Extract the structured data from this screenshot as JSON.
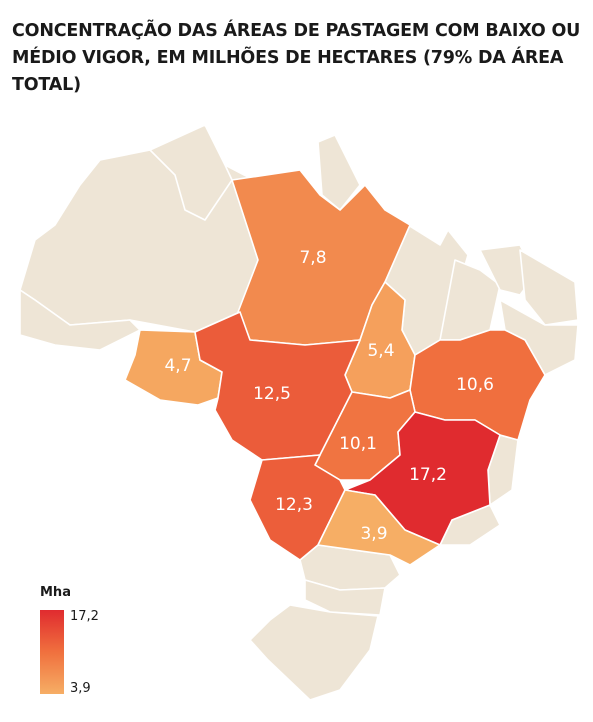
{
  "title": "CONCENTRAÇÃO DAS ÁREAS DE PASTAGEM COM BAIXO OU MÉDIO VIGOR, EM MILHÕES DE HECTARES (79% DA ÁREA TOTAL)",
  "legend": {
    "title": "Mha",
    "max": "17,2",
    "min": "3,9"
  },
  "colors": {
    "background_state": "#eee5d6",
    "scale_high": "#e02b2f",
    "scale_mid": "#f0703e",
    "scale_low": "#f6ae65"
  },
  "chart_data": {
    "type": "choropleth",
    "unit": "Mha",
    "scale_range": [
      3.9,
      17.2
    ],
    "regions": [
      {
        "value": 7.8,
        "label": "7,8"
      },
      {
        "value": 5.4,
        "label": "5,4"
      },
      {
        "value": 4.7,
        "label": "4,7"
      },
      {
        "value": 12.5,
        "label": "12,5"
      },
      {
        "value": 10.6,
        "label": "10,6"
      },
      {
        "value": 10.1,
        "label": "10,1"
      },
      {
        "value": 17.2,
        "label": "17,2"
      },
      {
        "value": 12.3,
        "label": "12,3"
      },
      {
        "value": 3.9,
        "label": "3,9"
      }
    ]
  }
}
